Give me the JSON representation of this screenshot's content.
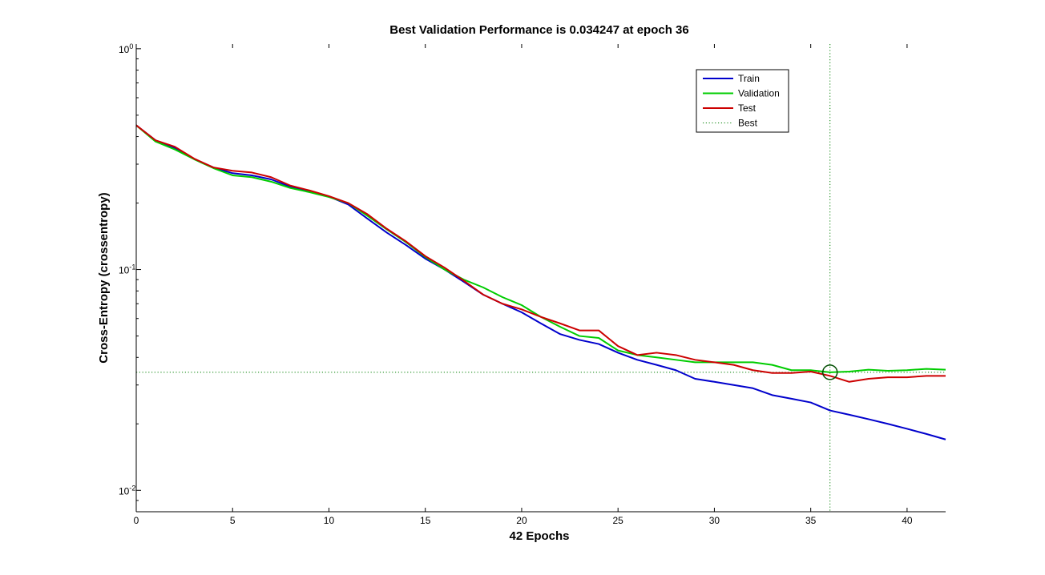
{
  "chart_data": {
    "type": "line",
    "title": "Best Validation Performance is 0.034247 at epoch 36",
    "xlabel": "42 Epochs",
    "ylabel": "Cross-Entropy  (crossentropy)",
    "xlim": [
      0,
      42
    ],
    "ylim": [
      0.008,
      1.05
    ],
    "yscale": "log",
    "xticks": [
      0,
      5,
      10,
      15,
      20,
      25,
      30,
      35,
      40
    ],
    "yticks": [
      {
        "value": 0.01,
        "base": "10",
        "exp": "-2"
      },
      {
        "value": 0.1,
        "base": "10",
        "exp": "-1"
      },
      {
        "value": 1,
        "base": "10",
        "exp": "0"
      }
    ],
    "legend_position": "top-right",
    "best": {
      "epoch": 36,
      "value": 0.034247,
      "color": "#007f00"
    },
    "series": [
      {
        "name": "Train",
        "color": "#0000cc",
        "x": [
          0,
          1,
          2,
          3,
          4,
          5,
          6,
          7,
          8,
          9,
          10,
          11,
          12,
          13,
          14,
          15,
          16,
          17,
          18,
          19,
          20,
          21,
          22,
          23,
          24,
          25,
          26,
          27,
          28,
          29,
          30,
          31,
          32,
          33,
          34,
          35,
          36,
          37,
          38,
          39,
          40,
          41,
          42
        ],
        "y": [
          0.45,
          0.385,
          0.355,
          0.317,
          0.29,
          0.273,
          0.267,
          0.256,
          0.237,
          0.227,
          0.214,
          0.197,
          0.17,
          0.147,
          0.129,
          0.112,
          0.1,
          0.088,
          0.077,
          0.07,
          0.064,
          0.057,
          0.051,
          0.048,
          0.046,
          0.042,
          0.039,
          0.037,
          0.035,
          0.032,
          0.031,
          0.03,
          0.029,
          0.027,
          0.026,
          0.025,
          0.023,
          0.022,
          0.021,
          0.02,
          0.019,
          0.018,
          0.017
        ]
      },
      {
        "name": "Validation",
        "color": "#00cc00",
        "x": [
          0,
          1,
          2,
          3,
          4,
          5,
          6,
          7,
          8,
          9,
          10,
          11,
          12,
          13,
          14,
          15,
          16,
          17,
          18,
          19,
          20,
          21,
          22,
          23,
          24,
          25,
          26,
          27,
          28,
          29,
          30,
          31,
          32,
          33,
          34,
          35,
          36,
          37,
          38,
          39,
          40,
          41,
          42
        ],
        "y": [
          0.45,
          0.38,
          0.35,
          0.316,
          0.288,
          0.267,
          0.262,
          0.25,
          0.234,
          0.224,
          0.213,
          0.2,
          0.175,
          0.152,
          0.133,
          0.114,
          0.1,
          0.09,
          0.083,
          0.075,
          0.069,
          0.061,
          0.055,
          0.05,
          0.049,
          0.043,
          0.041,
          0.04,
          0.039,
          0.038,
          0.038,
          0.038,
          0.038,
          0.037,
          0.035,
          0.035,
          0.034247,
          0.0345,
          0.0352,
          0.0348,
          0.035,
          0.0355,
          0.0352
        ]
      },
      {
        "name": "Test",
        "color": "#cc0000",
        "x": [
          0,
          1,
          2,
          3,
          4,
          5,
          6,
          7,
          8,
          9,
          10,
          11,
          12,
          13,
          14,
          15,
          16,
          17,
          18,
          19,
          20,
          21,
          22,
          23,
          24,
          25,
          26,
          27,
          28,
          29,
          30,
          31,
          32,
          33,
          34,
          35,
          36,
          37,
          38,
          39,
          40,
          41,
          42
        ],
        "y": [
          0.45,
          0.385,
          0.36,
          0.318,
          0.29,
          0.28,
          0.275,
          0.262,
          0.24,
          0.228,
          0.215,
          0.2,
          0.178,
          0.153,
          0.134,
          0.115,
          0.102,
          0.089,
          0.077,
          0.07,
          0.066,
          0.061,
          0.057,
          0.053,
          0.053,
          0.045,
          0.041,
          0.042,
          0.041,
          0.039,
          0.038,
          0.037,
          0.035,
          0.034,
          0.034,
          0.0345,
          0.033,
          0.031,
          0.032,
          0.0325,
          0.0325,
          0.033,
          0.033
        ]
      }
    ]
  },
  "legend": {
    "items": [
      {
        "name": "Train",
        "color": "#0000cc",
        "dash": ""
      },
      {
        "name": "Validation",
        "color": "#00cc00",
        "dash": ""
      },
      {
        "name": "Test",
        "color": "#cc0000",
        "dash": ""
      },
      {
        "name": "Best",
        "color": "#007f00",
        "dash": "1.2,2.6"
      }
    ]
  }
}
